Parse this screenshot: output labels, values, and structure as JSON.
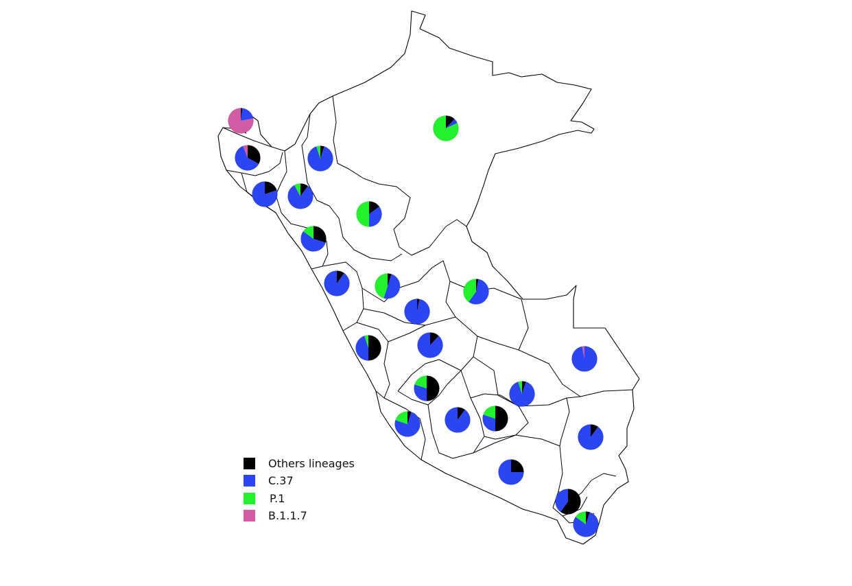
{
  "legend": {
    "items": [
      {
        "key": "others",
        "label": "Others lineages",
        "color": "#000000"
      },
      {
        "key": "c37",
        "label": "C.37",
        "color": "#2b45f5"
      },
      {
        "key": "p1",
        "label": "P.1",
        "color": "#22f22c"
      },
      {
        "key": "b117",
        "label": "B.1.1.7",
        "color": "#d35ba6"
      }
    ]
  },
  "map": {
    "country_outline_color": "#000000",
    "background": "#ffffff"
  },
  "region_pies": [
    {
      "name": "tumbes",
      "shares": {
        "others": 0.02,
        "c37": 0.2,
        "p1": 0.0,
        "b117": 0.78
      }
    },
    {
      "name": "loreto",
      "shares": {
        "others": 0.12,
        "c37": 0.06,
        "p1": 0.82,
        "b117": 0.0
      }
    },
    {
      "name": "piura",
      "shares": {
        "others": 0.33,
        "c37": 0.61,
        "p1": 0.0,
        "b117": 0.06
      }
    },
    {
      "name": "amazonas",
      "shares": {
        "others": 0.05,
        "c37": 0.9,
        "p1": 0.05,
        "b117": 0.0
      }
    },
    {
      "name": "lambayeque",
      "shares": {
        "others": 0.2,
        "c37": 0.8,
        "p1": 0.0,
        "b117": 0.0
      }
    },
    {
      "name": "cajamarca",
      "shares": {
        "others": 0.1,
        "c37": 0.82,
        "p1": 0.08,
        "b117": 0.0
      }
    },
    {
      "name": "san-martin",
      "shares": {
        "others": 0.15,
        "c37": 0.35,
        "p1": 0.5,
        "b117": 0.0
      }
    },
    {
      "name": "la-libertad",
      "shares": {
        "others": 0.3,
        "c37": 0.55,
        "p1": 0.15,
        "b117": 0.0
      }
    },
    {
      "name": "ancash",
      "shares": {
        "others": 0.1,
        "c37": 0.9,
        "p1": 0.0,
        "b117": 0.0
      }
    },
    {
      "name": "huanuco",
      "shares": {
        "others": 0.05,
        "c37": 0.5,
        "p1": 0.45,
        "b117": 0.0
      }
    },
    {
      "name": "ucayali",
      "shares": {
        "others": 0.03,
        "c37": 0.57,
        "p1": 0.4,
        "b117": 0.0
      }
    },
    {
      "name": "pasco",
      "shares": {
        "others": 0.03,
        "c37": 0.97,
        "p1": 0.0,
        "b117": 0.0
      }
    },
    {
      "name": "lima",
      "shares": {
        "others": 0.5,
        "c37": 0.45,
        "p1": 0.05,
        "b117": 0.0
      }
    },
    {
      "name": "junin",
      "shares": {
        "others": 0.12,
        "c37": 0.88,
        "p1": 0.0,
        "b117": 0.0
      }
    },
    {
      "name": "madre-de-dios",
      "shares": {
        "others": 0.0,
        "c37": 0.97,
        "p1": 0.0,
        "b117": 0.03
      }
    },
    {
      "name": "huancavelica",
      "shares": {
        "others": 0.5,
        "c37": 0.3,
        "p1": 0.2,
        "b117": 0.0
      }
    },
    {
      "name": "cusco",
      "shares": {
        "others": 0.05,
        "c37": 0.9,
        "p1": 0.05,
        "b117": 0.0
      }
    },
    {
      "name": "ica",
      "shares": {
        "others": 0.05,
        "c37": 0.75,
        "p1": 0.2,
        "b117": 0.0
      }
    },
    {
      "name": "ayacucho",
      "shares": {
        "others": 0.1,
        "c37": 0.9,
        "p1": 0.0,
        "b117": 0.0
      }
    },
    {
      "name": "apurimac",
      "shares": {
        "others": 0.5,
        "c37": 0.3,
        "p1": 0.2,
        "b117": 0.0
      }
    },
    {
      "name": "puno",
      "shares": {
        "others": 0.1,
        "c37": 0.9,
        "p1": 0.0,
        "b117": 0.0
      }
    },
    {
      "name": "arequipa",
      "shares": {
        "others": 0.25,
        "c37": 0.75,
        "p1": 0.0,
        "b117": 0.0
      }
    },
    {
      "name": "moquegua",
      "shares": {
        "others": 0.6,
        "c37": 0.4,
        "p1": 0.0,
        "b117": 0.0
      }
    },
    {
      "name": "tacna",
      "shares": {
        "others": 0.05,
        "c37": 0.8,
        "p1": 0.15,
        "b117": 0.0
      }
    }
  ]
}
